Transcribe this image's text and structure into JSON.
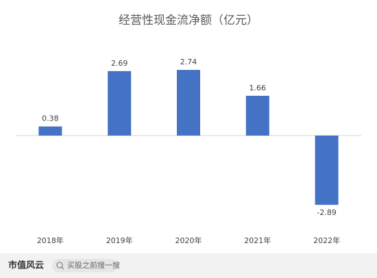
{
  "chart_data": {
    "type": "bar",
    "title": "经营性现金流净额（亿元）",
    "categories": [
      "2018年",
      "2019年",
      "2020年",
      "2021年",
      "2022年"
    ],
    "values": [
      0.38,
      2.69,
      2.74,
      1.66,
      -2.89
    ],
    "color": "#4472c4",
    "ylim": [
      -4,
      4
    ]
  },
  "footer": {
    "brand": "市值风云",
    "search": "买股之前搜一搜"
  }
}
